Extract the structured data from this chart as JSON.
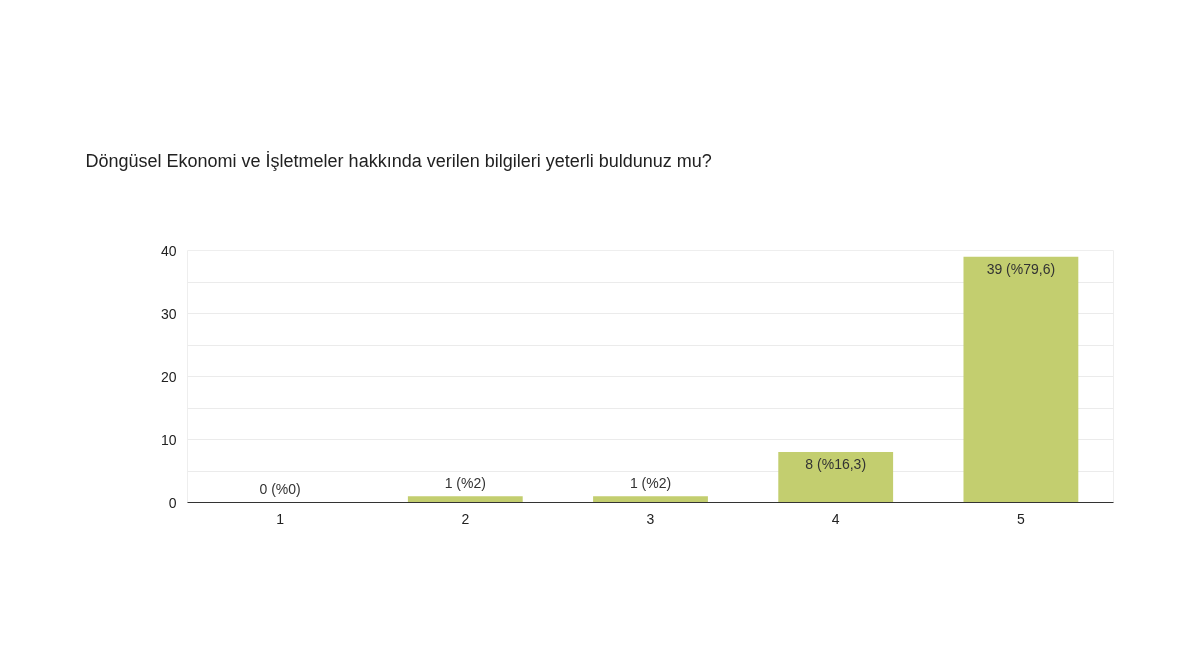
{
  "chart_data": {
    "type": "bar",
    "title": "Döngüsel Ekonomi ve İşletmeler hakkında verilen bilgileri yeterli buldunuz mu?",
    "categories": [
      "1",
      "2",
      "3",
      "4",
      "5"
    ],
    "values": [
      0,
      1,
      1,
      8,
      39
    ],
    "value_labels": [
      "0 (%0)",
      "1 (%2)",
      "1 (%2)",
      "8 (%16,3)",
      "39 (%79,6)"
    ],
    "color": "#c3ce6f",
    "ylim": [
      0,
      40
    ],
    "yticks": [
      0,
      {
        "value": 5,
        "label": null
      },
      10,
      {
        "value": 15,
        "label": null
      },
      20,
      {
        "value": 25,
        "label": null
      },
      30,
      {
        "value": 35,
        "label": null
      },
      40
    ],
    "grid": "y"
  }
}
